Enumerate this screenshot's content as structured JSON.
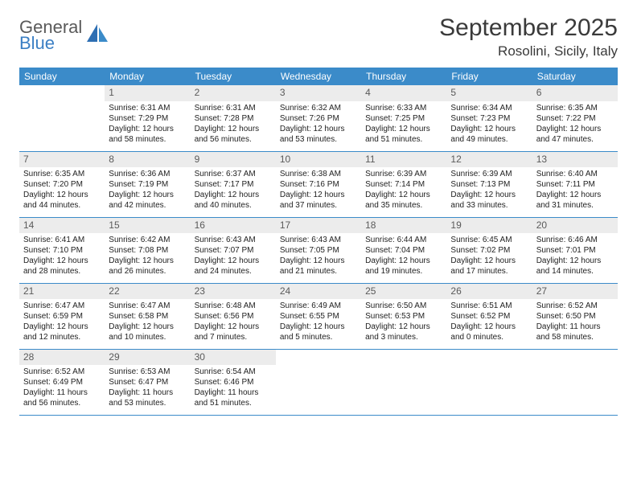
{
  "brand": {
    "name1": "General",
    "name2": "Blue"
  },
  "title": "September 2025",
  "location": "Rosolini, Sicily, Italy",
  "dayHeaders": [
    "Sunday",
    "Monday",
    "Tuesday",
    "Wednesday",
    "Thursday",
    "Friday",
    "Saturday"
  ],
  "colors": {
    "header_bg": "#3b8bc9",
    "header_text": "#ffffff",
    "daynum_bg": "#ececec",
    "row_border": "#3b8bc9",
    "logo_blue": "#3b7fc4",
    "text": "#222222"
  },
  "typography": {
    "title_fontsize": 30,
    "location_fontsize": 17,
    "header_fontsize": 12,
    "cell_fontsize": 10
  },
  "weeks": [
    [
      {
        "n": "",
        "sr": "",
        "ss": "",
        "dl": ""
      },
      {
        "n": "1",
        "sr": "Sunrise: 6:31 AM",
        "ss": "Sunset: 7:29 PM",
        "dl": "Daylight: 12 hours and 58 minutes."
      },
      {
        "n": "2",
        "sr": "Sunrise: 6:31 AM",
        "ss": "Sunset: 7:28 PM",
        "dl": "Daylight: 12 hours and 56 minutes."
      },
      {
        "n": "3",
        "sr": "Sunrise: 6:32 AM",
        "ss": "Sunset: 7:26 PM",
        "dl": "Daylight: 12 hours and 53 minutes."
      },
      {
        "n": "4",
        "sr": "Sunrise: 6:33 AM",
        "ss": "Sunset: 7:25 PM",
        "dl": "Daylight: 12 hours and 51 minutes."
      },
      {
        "n": "5",
        "sr": "Sunrise: 6:34 AM",
        "ss": "Sunset: 7:23 PM",
        "dl": "Daylight: 12 hours and 49 minutes."
      },
      {
        "n": "6",
        "sr": "Sunrise: 6:35 AM",
        "ss": "Sunset: 7:22 PM",
        "dl": "Daylight: 12 hours and 47 minutes."
      }
    ],
    [
      {
        "n": "7",
        "sr": "Sunrise: 6:35 AM",
        "ss": "Sunset: 7:20 PM",
        "dl": "Daylight: 12 hours and 44 minutes."
      },
      {
        "n": "8",
        "sr": "Sunrise: 6:36 AM",
        "ss": "Sunset: 7:19 PM",
        "dl": "Daylight: 12 hours and 42 minutes."
      },
      {
        "n": "9",
        "sr": "Sunrise: 6:37 AM",
        "ss": "Sunset: 7:17 PM",
        "dl": "Daylight: 12 hours and 40 minutes."
      },
      {
        "n": "10",
        "sr": "Sunrise: 6:38 AM",
        "ss": "Sunset: 7:16 PM",
        "dl": "Daylight: 12 hours and 37 minutes."
      },
      {
        "n": "11",
        "sr": "Sunrise: 6:39 AM",
        "ss": "Sunset: 7:14 PM",
        "dl": "Daylight: 12 hours and 35 minutes."
      },
      {
        "n": "12",
        "sr": "Sunrise: 6:39 AM",
        "ss": "Sunset: 7:13 PM",
        "dl": "Daylight: 12 hours and 33 minutes."
      },
      {
        "n": "13",
        "sr": "Sunrise: 6:40 AM",
        "ss": "Sunset: 7:11 PM",
        "dl": "Daylight: 12 hours and 31 minutes."
      }
    ],
    [
      {
        "n": "14",
        "sr": "Sunrise: 6:41 AM",
        "ss": "Sunset: 7:10 PM",
        "dl": "Daylight: 12 hours and 28 minutes."
      },
      {
        "n": "15",
        "sr": "Sunrise: 6:42 AM",
        "ss": "Sunset: 7:08 PM",
        "dl": "Daylight: 12 hours and 26 minutes."
      },
      {
        "n": "16",
        "sr": "Sunrise: 6:43 AM",
        "ss": "Sunset: 7:07 PM",
        "dl": "Daylight: 12 hours and 24 minutes."
      },
      {
        "n": "17",
        "sr": "Sunrise: 6:43 AM",
        "ss": "Sunset: 7:05 PM",
        "dl": "Daylight: 12 hours and 21 minutes."
      },
      {
        "n": "18",
        "sr": "Sunrise: 6:44 AM",
        "ss": "Sunset: 7:04 PM",
        "dl": "Daylight: 12 hours and 19 minutes."
      },
      {
        "n": "19",
        "sr": "Sunrise: 6:45 AM",
        "ss": "Sunset: 7:02 PM",
        "dl": "Daylight: 12 hours and 17 minutes."
      },
      {
        "n": "20",
        "sr": "Sunrise: 6:46 AM",
        "ss": "Sunset: 7:01 PM",
        "dl": "Daylight: 12 hours and 14 minutes."
      }
    ],
    [
      {
        "n": "21",
        "sr": "Sunrise: 6:47 AM",
        "ss": "Sunset: 6:59 PM",
        "dl": "Daylight: 12 hours and 12 minutes."
      },
      {
        "n": "22",
        "sr": "Sunrise: 6:47 AM",
        "ss": "Sunset: 6:58 PM",
        "dl": "Daylight: 12 hours and 10 minutes."
      },
      {
        "n": "23",
        "sr": "Sunrise: 6:48 AM",
        "ss": "Sunset: 6:56 PM",
        "dl": "Daylight: 12 hours and 7 minutes."
      },
      {
        "n": "24",
        "sr": "Sunrise: 6:49 AM",
        "ss": "Sunset: 6:55 PM",
        "dl": "Daylight: 12 hours and 5 minutes."
      },
      {
        "n": "25",
        "sr": "Sunrise: 6:50 AM",
        "ss": "Sunset: 6:53 PM",
        "dl": "Daylight: 12 hours and 3 minutes."
      },
      {
        "n": "26",
        "sr": "Sunrise: 6:51 AM",
        "ss": "Sunset: 6:52 PM",
        "dl": "Daylight: 12 hours and 0 minutes."
      },
      {
        "n": "27",
        "sr": "Sunrise: 6:52 AM",
        "ss": "Sunset: 6:50 PM",
        "dl": "Daylight: 11 hours and 58 minutes."
      }
    ],
    [
      {
        "n": "28",
        "sr": "Sunrise: 6:52 AM",
        "ss": "Sunset: 6:49 PM",
        "dl": "Daylight: 11 hours and 56 minutes."
      },
      {
        "n": "29",
        "sr": "Sunrise: 6:53 AM",
        "ss": "Sunset: 6:47 PM",
        "dl": "Daylight: 11 hours and 53 minutes."
      },
      {
        "n": "30",
        "sr": "Sunrise: 6:54 AM",
        "ss": "Sunset: 6:46 PM",
        "dl": "Daylight: 11 hours and 51 minutes."
      },
      {
        "n": "",
        "sr": "",
        "ss": "",
        "dl": ""
      },
      {
        "n": "",
        "sr": "",
        "ss": "",
        "dl": ""
      },
      {
        "n": "",
        "sr": "",
        "ss": "",
        "dl": ""
      },
      {
        "n": "",
        "sr": "",
        "ss": "",
        "dl": ""
      }
    ]
  ]
}
